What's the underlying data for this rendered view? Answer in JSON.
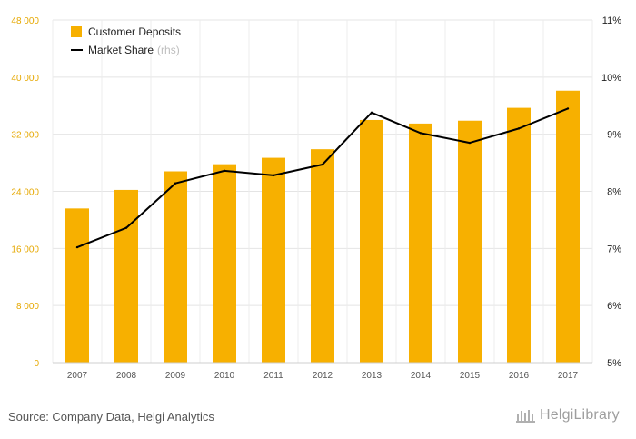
{
  "chart_data": {
    "type": "bar",
    "categories": [
      "2007",
      "2008",
      "2009",
      "2010",
      "2011",
      "2012",
      "2013",
      "2014",
      "2015",
      "2016",
      "2017"
    ],
    "series": [
      {
        "name": "Customer Deposits",
        "type": "bar",
        "axis": "left",
        "color": "#f7b000",
        "values": [
          21600,
          24200,
          26800,
          27800,
          28700,
          29900,
          34000,
          33500,
          33900,
          35700,
          38100
        ]
      },
      {
        "name": "Market Share",
        "note": "(rhs)",
        "type": "line",
        "axis": "right",
        "color": "#000000",
        "values": [
          7.02,
          7.36,
          8.14,
          8.36,
          8.28,
          8.47,
          9.38,
          9.02,
          8.85,
          9.1,
          9.45
        ]
      }
    ],
    "y_left": {
      "ylim": [
        0,
        48000
      ],
      "ticks": [
        0,
        8000,
        16000,
        24000,
        32000,
        40000,
        48000
      ],
      "tick_labels": [
        "0",
        "8 000",
        "16 000",
        "24 000",
        "32 000",
        "40 000",
        "48 000"
      ]
    },
    "y_right": {
      "ylim": [
        5,
        11
      ],
      "ticks": [
        5,
        6,
        7,
        8,
        9,
        10,
        11
      ],
      "tick_labels": [
        "5%",
        "6%",
        "7%",
        "8%",
        "9%",
        "10%",
        "11%"
      ]
    },
    "grid": true,
    "legend_position": "top-left"
  },
  "footer": {
    "source": "Source: Company Data, Helgi Analytics",
    "brand": "HelgiLibrary"
  }
}
